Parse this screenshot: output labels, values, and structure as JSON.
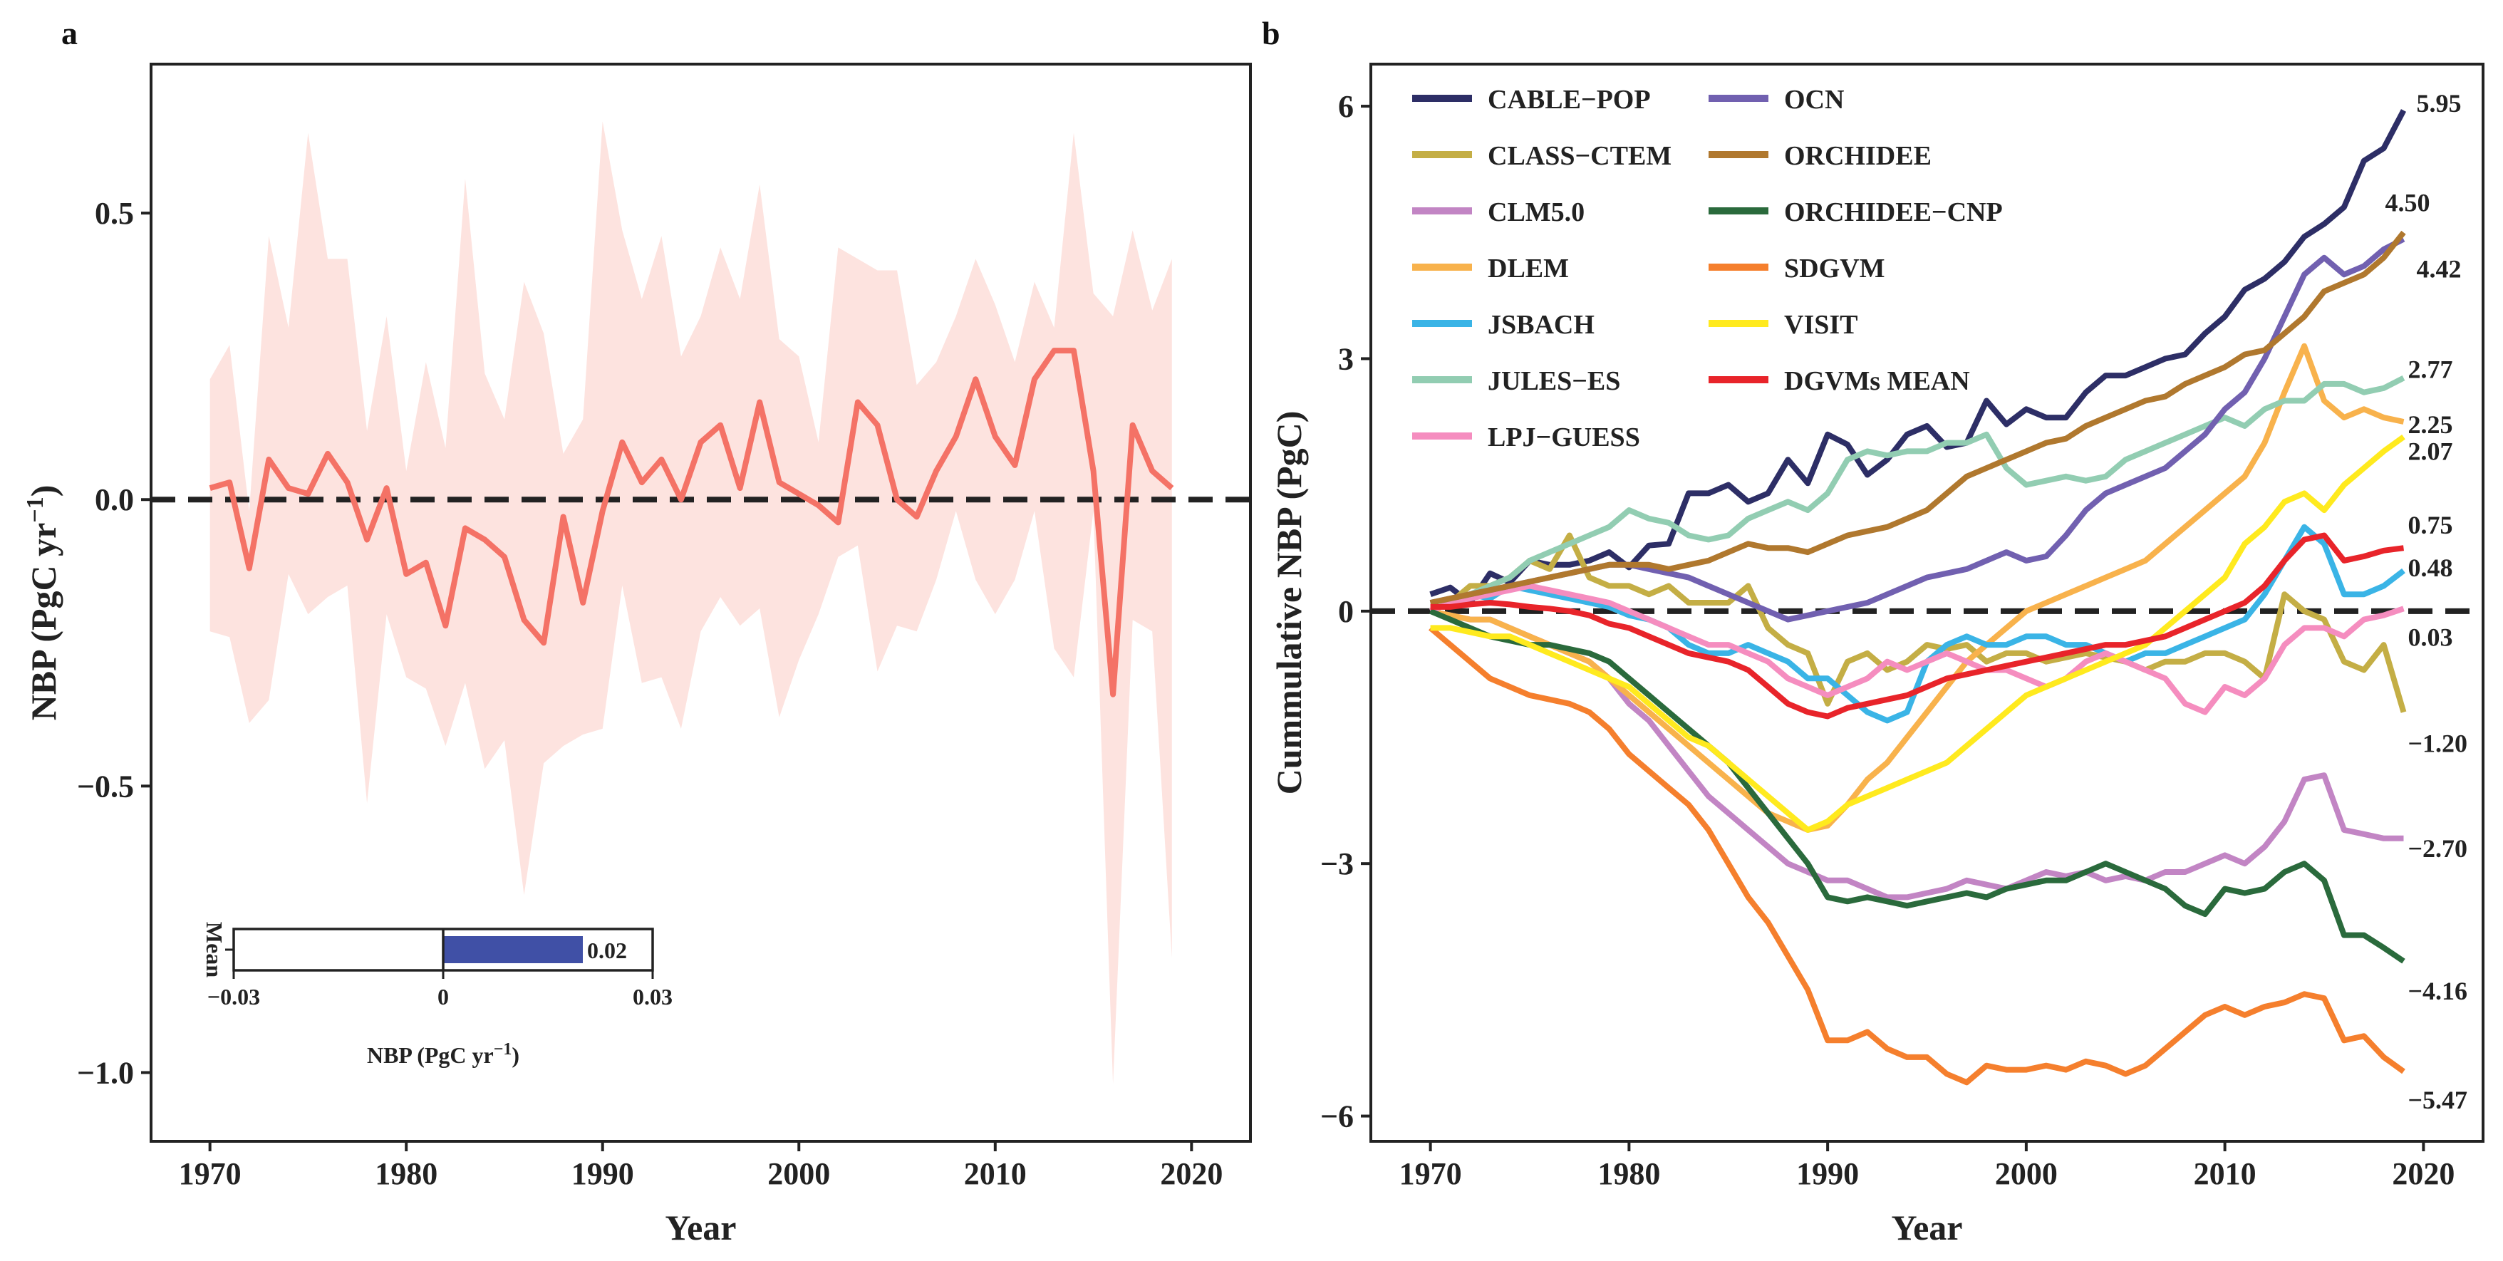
{
  "chart_data": [
    {
      "panel": "a",
      "type": "line",
      "xlabel": "Year",
      "ylabel": "NBP (PgC yr",
      "ylabel_sup": "−1",
      "ylabel_close": ")",
      "xlim": [
        1967,
        2023
      ],
      "ylim": [
        -1.12,
        0.76
      ],
      "xticks": [
        1970,
        1980,
        1990,
        2000,
        2010,
        2020
      ],
      "yticks": [
        {
          "v": 0.5,
          "label": "0.5"
        },
        {
          "v": 0.0,
          "label": "0.0"
        },
        {
          "v": -0.5,
          "label": "−0.5"
        },
        {
          "v": -1.0,
          "label": "−1.0"
        }
      ],
      "zero_line": 0,
      "series": [
        {
          "name": "DGVMs MEAN",
          "color": "#F47266",
          "x_start": 1970,
          "values": [
            0.02,
            0.03,
            -0.12,
            0.07,
            0.02,
            0.01,
            0.08,
            0.03,
            -0.07,
            0.02,
            -0.13,
            -0.11,
            -0.22,
            -0.05,
            -0.07,
            -0.1,
            -0.21,
            -0.25,
            -0.03,
            -0.18,
            -0.02,
            0.1,
            0.03,
            0.07,
            0.0,
            0.1,
            0.13,
            0.02,
            0.17,
            0.03,
            0.01,
            -0.01,
            -0.04,
            0.17,
            0.13,
            0.0,
            -0.03,
            0.05,
            0.11,
            0.21,
            0.11,
            0.06,
            0.21,
            0.26,
            0.26,
            0.05,
            -0.34,
            0.13,
            0.05,
            0.02
          ],
          "band_upper": [
            0.21,
            0.27,
            -0.02,
            0.46,
            0.3,
            0.64,
            0.42,
            0.42,
            0.12,
            0.32,
            0.05,
            0.24,
            0.09,
            0.56,
            0.22,
            0.14,
            0.38,
            0.29,
            0.08,
            0.14,
            0.66,
            0.47,
            0.35,
            0.46,
            0.25,
            0.32,
            0.44,
            0.35,
            0.55,
            0.28,
            0.25,
            0.1,
            0.44,
            0.42,
            0.4,
            0.4,
            0.2,
            0.24,
            0.32,
            0.42,
            0.34,
            0.24,
            0.38,
            0.3,
            0.64,
            0.36,
            0.32,
            0.47,
            0.33,
            0.42
          ],
          "band_lower": [
            -0.23,
            -0.24,
            -0.39,
            -0.35,
            -0.13,
            -0.2,
            -0.17,
            -0.15,
            -0.53,
            -0.2,
            -0.31,
            -0.33,
            -0.43,
            -0.32,
            -0.47,
            -0.42,
            -0.69,
            -0.46,
            -0.43,
            -0.41,
            -0.4,
            -0.15,
            -0.32,
            -0.31,
            -0.4,
            -0.23,
            -0.17,
            -0.22,
            -0.19,
            -0.38,
            -0.28,
            -0.2,
            -0.1,
            -0.08,
            -0.3,
            -0.22,
            -0.23,
            -0.14,
            -0.02,
            -0.14,
            -0.2,
            -0.14,
            -0.02,
            -0.26,
            -0.31,
            -0.02,
            -1.02,
            -0.21,
            -0.23,
            -0.8
          ],
          "band_color": "#FDE3DF"
        }
      ],
      "inset": {
        "ylabel": "Mean",
        "xlabel": "NBP (PgC yr",
        "xlabel_sup": "−1",
        "xlabel_close": ")",
        "value": 0.02,
        "value_label": "0.02",
        "xlim": [
          -0.03,
          0.03
        ],
        "xticks": [
          {
            "v": -0.03,
            "label": "−0.03"
          },
          {
            "v": 0,
            "label": "0"
          },
          {
            "v": 0.03,
            "label": "0.03"
          }
        ],
        "bar_color": "#4050A6"
      }
    },
    {
      "panel": "b",
      "type": "line",
      "xlabel": "Year",
      "ylabel": "Cummulative NBP (PgC)",
      "xlim": [
        1967,
        2023
      ],
      "ylim": [
        -6.3,
        6.5
      ],
      "xticks": [
        1970,
        1980,
        1990,
        2000,
        2010,
        2020
      ],
      "yticks": [
        {
          "v": 6,
          "label": "6"
        },
        {
          "v": 3,
          "label": "3"
        },
        {
          "v": 0,
          "label": "0"
        },
        {
          "v": -3,
          "label": "−3"
        },
        {
          "v": -6,
          "label": "−6"
        }
      ],
      "zero_line": 0,
      "x_start": 1970,
      "series": [
        {
          "name": "CABLE−POP",
          "color": "#2D2E66",
          "end_label": "5.95",
          "values": [
            0.2,
            0.28,
            0.1,
            0.45,
            0.34,
            0.6,
            0.55,
            0.55,
            0.6,
            0.7,
            0.52,
            0.78,
            0.8,
            1.4,
            1.4,
            1.5,
            1.3,
            1.4,
            1.8,
            1.52,
            2.1,
            1.98,
            1.62,
            1.8,
            2.1,
            2.2,
            1.95,
            2.0,
            2.5,
            2.22,
            2.4,
            2.3,
            2.3,
            2.6,
            2.8,
            2.8,
            2.9,
            3.0,
            3.05,
            3.3,
            3.5,
            3.82,
            3.95,
            4.15,
            4.45,
            4.6,
            4.8,
            5.35,
            5.5,
            5.95
          ]
        },
        {
          "name": "CLASS−CTEM",
          "color": "#C4AE45",
          "end_label": "−1.20",
          "values": [
            0.0,
            0.1,
            0.3,
            0.3,
            0.4,
            0.6,
            0.5,
            0.9,
            0.4,
            0.3,
            0.3,
            0.2,
            0.3,
            0.1,
            0.1,
            0.1,
            0.3,
            -0.2,
            -0.4,
            -0.5,
            -1.1,
            -0.6,
            -0.5,
            -0.7,
            -0.6,
            -0.4,
            -0.45,
            -0.4,
            -0.6,
            -0.5,
            -0.5,
            -0.6,
            -0.55,
            -0.5,
            -0.55,
            -0.6,
            -0.7,
            -0.6,
            -0.6,
            -0.5,
            -0.5,
            -0.6,
            -0.8,
            0.2,
            0.0,
            -0.1,
            -0.6,
            -0.7,
            -0.4,
            -1.2
          ]
        },
        {
          "name": "CLM5.0",
          "color": "#C285C4",
          "end_label": "−2.70",
          "values": [
            0.0,
            -0.05,
            -0.1,
            -0.1,
            -0.2,
            -0.3,
            -0.4,
            -0.5,
            -0.6,
            -0.8,
            -1.1,
            -1.3,
            -1.6,
            -1.9,
            -2.2,
            -2.4,
            -2.6,
            -2.8,
            -3.0,
            -3.1,
            -3.2,
            -3.2,
            -3.3,
            -3.4,
            -3.4,
            -3.35,
            -3.3,
            -3.2,
            -3.25,
            -3.3,
            -3.2,
            -3.1,
            -3.15,
            -3.1,
            -3.2,
            -3.15,
            -3.2,
            -3.1,
            -3.1,
            -3.0,
            -2.9,
            -3.0,
            -2.8,
            -2.5,
            -2.0,
            -1.95,
            -2.6,
            -2.65,
            -2.7,
            -2.7
          ]
        },
        {
          "name": "DLEM",
          "color": "#F8B24C",
          "end_label": "2.25",
          "values": [
            0.0,
            -0.05,
            -0.1,
            -0.1,
            -0.2,
            -0.3,
            -0.4,
            -0.5,
            -0.6,
            -0.8,
            -1.0,
            -1.2,
            -1.4,
            -1.6,
            -1.8,
            -2.0,
            -2.2,
            -2.4,
            -2.5,
            -2.6,
            -2.55,
            -2.3,
            -2.0,
            -1.8,
            -1.5,
            -1.2,
            -0.9,
            -0.6,
            -0.4,
            -0.2,
            0.0,
            0.1,
            0.2,
            0.3,
            0.4,
            0.5,
            0.6,
            0.8,
            1.0,
            1.2,
            1.4,
            1.6,
            2.0,
            2.6,
            3.15,
            2.5,
            2.3,
            2.4,
            2.3,
            2.25
          ]
        },
        {
          "name": "JSBACH",
          "color": "#3AB4E6",
          "end_label": "0.48",
          "values": [
            0.0,
            0.1,
            0.2,
            0.15,
            0.3,
            0.25,
            0.2,
            0.15,
            0.1,
            0.05,
            -0.05,
            -0.1,
            -0.2,
            -0.4,
            -0.5,
            -0.5,
            -0.4,
            -0.5,
            -0.6,
            -0.8,
            -0.8,
            -1.0,
            -1.2,
            -1.3,
            -1.2,
            -0.6,
            -0.4,
            -0.3,
            -0.4,
            -0.4,
            -0.3,
            -0.3,
            -0.4,
            -0.4,
            -0.5,
            -0.6,
            -0.5,
            -0.5,
            -0.4,
            -0.3,
            -0.2,
            -0.1,
            0.2,
            0.6,
            1.0,
            0.8,
            0.2,
            0.2,
            0.3,
            0.48
          ]
        },
        {
          "name": "JULES−ES",
          "color": "#92CDB2",
          "end_label": "2.77",
          "values": [
            0.0,
            0.1,
            0.2,
            0.3,
            0.4,
            0.6,
            0.7,
            0.8,
            0.9,
            1.0,
            1.2,
            1.1,
            1.05,
            0.9,
            0.85,
            0.9,
            1.1,
            1.2,
            1.3,
            1.2,
            1.4,
            1.8,
            1.9,
            1.85,
            1.9,
            1.9,
            2.0,
            2.0,
            2.1,
            1.7,
            1.5,
            1.55,
            1.6,
            1.55,
            1.6,
            1.8,
            1.9,
            2.0,
            2.1,
            2.2,
            2.3,
            2.2,
            2.4,
            2.5,
            2.5,
            2.7,
            2.7,
            2.6,
            2.65,
            2.77
          ]
        },
        {
          "name": "LPJ−GUESS",
          "color": "#F58DBF",
          "end_label": "0.03",
          "values": [
            0.0,
            0.1,
            0.15,
            0.2,
            0.25,
            0.3,
            0.25,
            0.2,
            0.15,
            0.1,
            0.0,
            -0.1,
            -0.2,
            -0.3,
            -0.4,
            -0.4,
            -0.5,
            -0.6,
            -0.8,
            -0.9,
            -1.0,
            -0.9,
            -0.8,
            -0.6,
            -0.7,
            -0.6,
            -0.5,
            -0.6,
            -0.7,
            -0.7,
            -0.8,
            -0.9,
            -0.8,
            -0.6,
            -0.5,
            -0.6,
            -0.7,
            -0.8,
            -1.1,
            -1.2,
            -0.9,
            -1.0,
            -0.8,
            -0.4,
            -0.2,
            -0.2,
            -0.3,
            -0.1,
            -0.05,
            0.03
          ]
        },
        {
          "name": "OCN",
          "color": "#7160B0",
          "end_label": "4.42",
          "values": [
            0.1,
            0.15,
            0.2,
            0.25,
            0.3,
            0.35,
            0.4,
            0.45,
            0.5,
            0.55,
            0.55,
            0.5,
            0.45,
            0.4,
            0.3,
            0.2,
            0.1,
            0.0,
            -0.1,
            -0.05,
            0.0,
            0.05,
            0.1,
            0.2,
            0.3,
            0.4,
            0.45,
            0.5,
            0.6,
            0.7,
            0.6,
            0.65,
            0.9,
            1.2,
            1.4,
            1.5,
            1.6,
            1.7,
            1.9,
            2.1,
            2.4,
            2.6,
            3.0,
            3.5,
            4.0,
            4.2,
            4.0,
            4.1,
            4.3,
            4.42
          ]
        },
        {
          "name": "ORCHIDEE",
          "color": "#B0782E",
          "end_label": "4.50",
          "values": [
            0.1,
            0.15,
            0.2,
            0.25,
            0.3,
            0.35,
            0.4,
            0.45,
            0.5,
            0.55,
            0.55,
            0.55,
            0.5,
            0.55,
            0.6,
            0.7,
            0.8,
            0.75,
            0.75,
            0.7,
            0.8,
            0.9,
            0.95,
            1.0,
            1.1,
            1.2,
            1.4,
            1.6,
            1.7,
            1.8,
            1.9,
            2.0,
            2.05,
            2.2,
            2.3,
            2.4,
            2.5,
            2.55,
            2.7,
            2.8,
            2.9,
            3.05,
            3.1,
            3.3,
            3.5,
            3.8,
            3.9,
            4.0,
            4.2,
            4.5
          ]
        },
        {
          "name": "ORCHIDEE−CNP",
          "color": "#2A6A3C",
          "end_label": "−4.16",
          "values": [
            0.0,
            -0.1,
            -0.2,
            -0.3,
            -0.35,
            -0.4,
            -0.4,
            -0.45,
            -0.5,
            -0.6,
            -0.8,
            -1.0,
            -1.2,
            -1.4,
            -1.6,
            -1.8,
            -2.1,
            -2.4,
            -2.7,
            -3.0,
            -3.4,
            -3.45,
            -3.4,
            -3.45,
            -3.5,
            -3.45,
            -3.4,
            -3.35,
            -3.4,
            -3.3,
            -3.25,
            -3.2,
            -3.2,
            -3.1,
            -3.0,
            -3.1,
            -3.2,
            -3.3,
            -3.5,
            -3.6,
            -3.3,
            -3.35,
            -3.3,
            -3.1,
            -3.0,
            -3.2,
            -3.85,
            -3.85,
            -4.0,
            -4.16
          ]
        },
        {
          "name": "SDGVM",
          "color": "#F57F2D",
          "end_label": "−5.47",
          "values": [
            -0.2,
            -0.4,
            -0.6,
            -0.8,
            -0.9,
            -1.0,
            -1.05,
            -1.1,
            -1.2,
            -1.4,
            -1.7,
            -1.9,
            -2.1,
            -2.3,
            -2.6,
            -3.0,
            -3.4,
            -3.7,
            -4.1,
            -4.5,
            -5.1,
            -5.1,
            -5.0,
            -5.2,
            -5.3,
            -5.3,
            -5.5,
            -5.6,
            -5.4,
            -5.45,
            -5.45,
            -5.4,
            -5.45,
            -5.35,
            -5.4,
            -5.5,
            -5.4,
            -5.2,
            -5.0,
            -4.8,
            -4.7,
            -4.8,
            -4.7,
            -4.65,
            -4.55,
            -4.6,
            -5.1,
            -5.05,
            -5.3,
            -5.47
          ]
        },
        {
          "name": "VISIT",
          "color": "#FFEA1E",
          "end_label": "2.07",
          "values": [
            -0.2,
            -0.2,
            -0.25,
            -0.3,
            -0.3,
            -0.4,
            -0.5,
            -0.6,
            -0.7,
            -0.8,
            -0.9,
            -1.1,
            -1.3,
            -1.5,
            -1.6,
            -1.8,
            -2.0,
            -2.2,
            -2.4,
            -2.6,
            -2.5,
            -2.3,
            -2.2,
            -2.1,
            -2.0,
            -1.9,
            -1.8,
            -1.6,
            -1.4,
            -1.2,
            -1.0,
            -0.9,
            -0.8,
            -0.7,
            -0.6,
            -0.5,
            -0.4,
            -0.2,
            0.0,
            0.2,
            0.4,
            0.8,
            1.0,
            1.3,
            1.4,
            1.2,
            1.5,
            1.7,
            1.9,
            2.07
          ]
        },
        {
          "name": "DGVMs MEAN",
          "color": "#E8242A",
          "end_label": "0.75",
          "values": [
            0.05,
            0.05,
            0.08,
            0.1,
            0.08,
            0.05,
            0.03,
            0.0,
            -0.05,
            -0.15,
            -0.2,
            -0.3,
            -0.4,
            -0.5,
            -0.55,
            -0.6,
            -0.7,
            -0.9,
            -1.1,
            -1.2,
            -1.25,
            -1.15,
            -1.1,
            -1.05,
            -1.0,
            -0.9,
            -0.8,
            -0.75,
            -0.7,
            -0.65,
            -0.6,
            -0.55,
            -0.5,
            -0.45,
            -0.4,
            -0.4,
            -0.35,
            -0.3,
            -0.2,
            -0.1,
            0.0,
            0.1,
            0.3,
            0.6,
            0.85,
            0.9,
            0.6,
            0.65,
            0.72,
            0.75
          ]
        }
      ]
    }
  ]
}
